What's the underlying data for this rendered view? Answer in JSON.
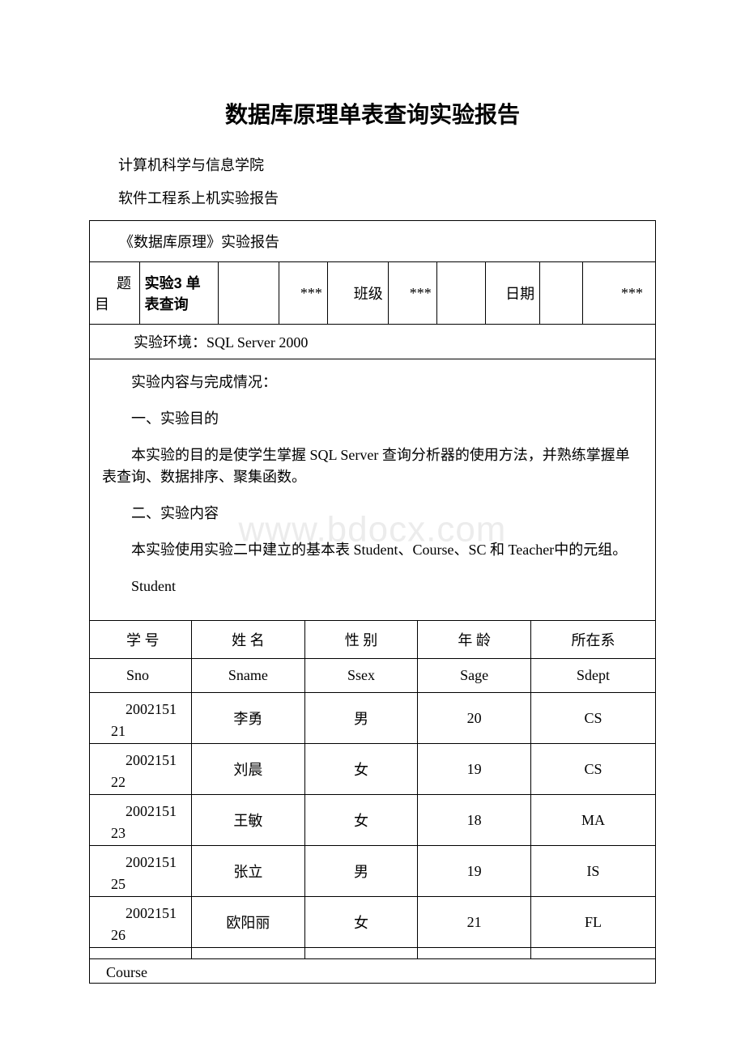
{
  "title": "数据库原理单表查询实验报告",
  "institute": "计算机科学与信息学院",
  "subtitle": "软件工程系上机实验报告",
  "report_label": "《数据库原理》实验报告",
  "meta": {
    "topic_label": "题目",
    "topic_value": "实验3 单表查询",
    "star1": "***",
    "class_label": "班级",
    "star2": "***",
    "date_label": "日期",
    "star3": "***"
  },
  "env": "实验环境：SQL Server 2000",
  "content": {
    "p1": "实验内容与完成情况：",
    "p2": "一、实验目的",
    "p3": "本实验的目的是使学生掌握 SQL Server 查询分析器的使用方法，并熟练掌握单表查询、数据排序、聚集函数。",
    "p4": "二、实验内容",
    "p5": "本实验使用实验二中建立的基本表 Student、Course、SC 和 Teacher中的元组。",
    "p6": "Student"
  },
  "watermark": "www.bdocx.com",
  "student_table": {
    "headers1": [
      "学 号",
      "姓 名",
      "性 别",
      "年 龄",
      "所在系"
    ],
    "headers2": [
      "Sno",
      "Sname",
      "Ssex",
      "Sage",
      "Sdept"
    ],
    "rows": [
      {
        "sno_top": "2002151",
        "sno_bot": "21",
        "sname": "李勇",
        "ssex": "男",
        "sage": "20",
        "sdept": "CS"
      },
      {
        "sno_top": "2002151",
        "sno_bot": "22",
        "sname": "刘晨",
        "ssex": "女",
        "sage": "19",
        "sdept": "CS"
      },
      {
        "sno_top": "2002151",
        "sno_bot": "23",
        "sname": "王敏",
        "ssex": "女",
        "sage": "18",
        "sdept": "MA"
      },
      {
        "sno_top": "2002151",
        "sno_bot": "25",
        "sname": "张立",
        "ssex": "男",
        "sage": "19",
        "sdept": "IS"
      },
      {
        "sno_top": "2002151",
        "sno_bot": "26",
        "sname": "欧阳丽",
        "ssex": "女",
        "sage": "21",
        "sdept": "FL"
      }
    ]
  },
  "course_label": "Course",
  "styling": {
    "background_color": "#ffffff",
    "text_color": "#000000",
    "border_color": "#000000",
    "watermark_color": "#ececec",
    "title_fontsize": 28,
    "body_fontsize": 18
  }
}
